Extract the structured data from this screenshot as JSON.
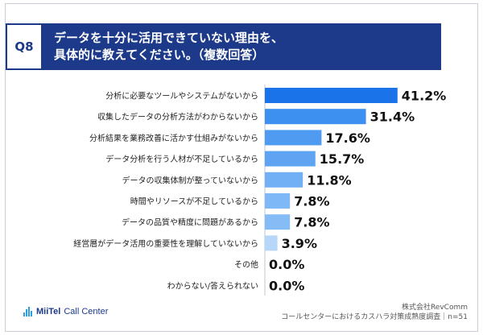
{
  "header": {
    "question_no": "Q8",
    "title_line1": "データを十分に活用できていない理由を、",
    "title_line2": "具体的に教えてください。（複数回答）"
  },
  "chart_data": {
    "type": "bar",
    "orientation": "horizontal",
    "categories": [
      "分析に必要なツールやシステムがないから",
      "収集したデータの分析方法がわからないから",
      "分析結果を業務改善に活かす仕組みがないから",
      "データ分析を行う人材が不足しているから",
      "データの収集体制が整っていないから",
      "時間やリソースが不足しているから",
      "データの品質や精度に問題があるから",
      "経営層がデータ活用の重要性を理解していないから",
      "その他",
      "わからない/答えられない"
    ],
    "values": [
      41.2,
      31.4,
      17.6,
      15.7,
      11.8,
      7.8,
      7.8,
      3.9,
      0.0,
      0.0
    ],
    "value_labels": [
      "41.2%",
      "31.4%",
      "17.6%",
      "15.7%",
      "11.8%",
      "7.8%",
      "7.8%",
      "3.9%",
      "0.0%",
      "0.0%"
    ],
    "xlim": [
      0,
      45
    ],
    "bar_colors": [
      "#1a73e8",
      "#3d8ff0",
      "#4f9bf2",
      "#5ea4f3",
      "#71b0f5",
      "#7fb8f6",
      "#86bcf6",
      "#b6d6fa",
      "#b6d6fa",
      "#b6d6fa"
    ],
    "grid": false,
    "legend": "none"
  },
  "footer": {
    "company": "株式会社RevComm",
    "survey": "コールセンターにおけるカスハラ対策成熟度調査｜n=51",
    "brand_part1": "MiiTel",
    "brand_part2": "Call Center"
  },
  "colors": {
    "header_bg": "#1d3a8a",
    "accent": "#1a73e8"
  }
}
